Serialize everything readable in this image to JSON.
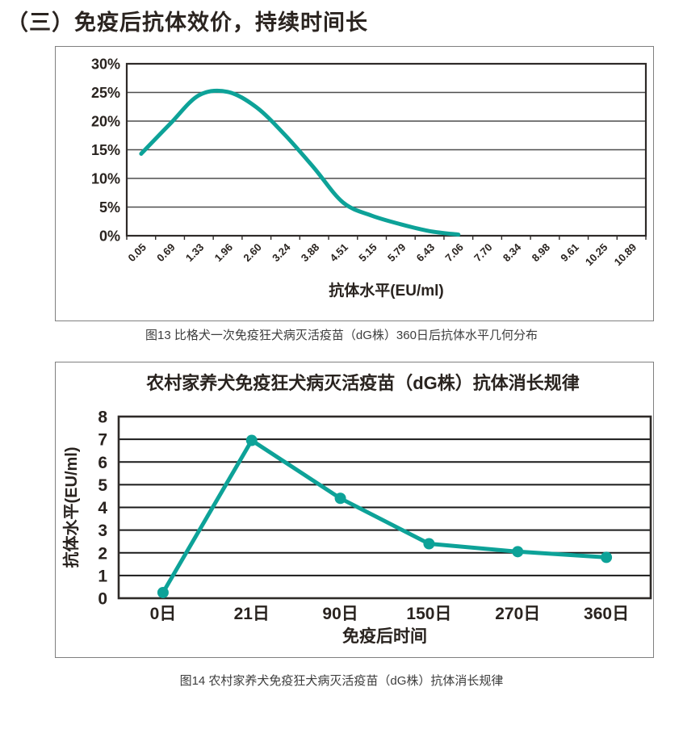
{
  "page": {
    "title": "（三）免疫后抗体效价，持续时间长"
  },
  "figure13": {
    "caption": "图13 比格犬一次免疫狂犬病灭活疫苗（dG株）360日后抗体水平几何分布"
  },
  "figure14": {
    "caption": "图14 农村家养犬免疫狂犬病灭活疫苗（dG株）抗体消长规律"
  },
  "colors": {
    "line": "#0da298",
    "marker": "#0da298",
    "grid_light": "#4d4d4d",
    "grid_dark": "#1a1a1a",
    "frame": "#2e2a28",
    "chart_text": "#29231f",
    "caption_text": "#3d3d3d"
  },
  "chart_data": [
    {
      "id": "figure13",
      "type": "line",
      "title": "",
      "xlabel": "抗体水平(EU/ml)",
      "ylabel": "",
      "categories": [
        "0.05",
        "0.69",
        "1.33",
        "1.96",
        "2.60",
        "3.24",
        "3.88",
        "4.51",
        "5.15",
        "5.79",
        "6.43",
        "7.06",
        "7.70",
        "8.34",
        "8.98",
        "9.61",
        "10.25",
        "10.89"
      ],
      "values": [
        14.3,
        19.5,
        24.5,
        25.1,
        22.4,
        17.5,
        11.8,
        5.8,
        3.5,
        2.0,
        0.8,
        0.2
      ],
      "ylim": [
        0,
        30
      ],
      "ytick_step": 5,
      "ytick_suffix": "%",
      "grid": true,
      "markers": false,
      "legend": "none",
      "note": "smooth curve, ends at category 7.06; no data plotted beyond"
    },
    {
      "id": "figure14",
      "type": "line",
      "title": "农村家养犬免疫狂犬病灭活疫苗（dG株）抗体消长规律",
      "xlabel": "免疫后时间",
      "ylabel": "抗体水平(EU/ml)",
      "categories": [
        "0日",
        "21日",
        "90日",
        "150日",
        "270日",
        "360日"
      ],
      "values": [
        0.25,
        6.95,
        4.4,
        2.4,
        2.05,
        1.8
      ],
      "ylim": [
        0,
        8
      ],
      "ytick_step": 1,
      "ytick_suffix": "",
      "grid": true,
      "markers": true,
      "legend": "none"
    }
  ]
}
